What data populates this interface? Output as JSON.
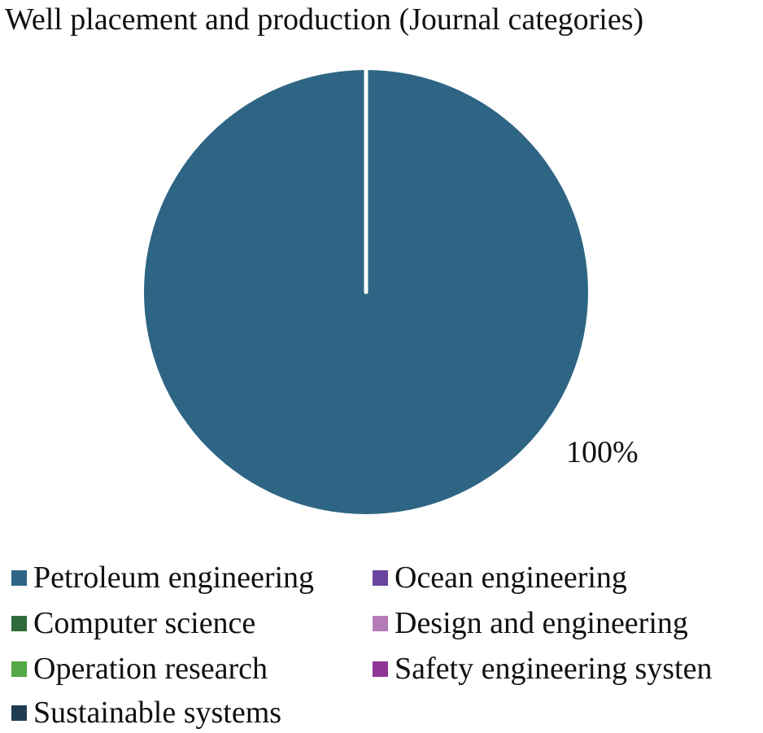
{
  "chart_data": {
    "type": "pie",
    "title": "Well placement and production (Journal categories)",
    "series": [
      {
        "name": "Petroleum engineering",
        "value": 100,
        "color": "#2e6584"
      },
      {
        "name": "Ocean engineering",
        "value": 0,
        "color": "#6a45a0"
      },
      {
        "name": "Computer science",
        "value": 0,
        "color": "#2f6b3c"
      },
      {
        "name": "Design and engineering",
        "value": 0,
        "color": "#b57bb9"
      },
      {
        "name": "Operation research",
        "value": 0,
        "color": "#55a845"
      },
      {
        "name": "Safety engineering systen",
        "value": 0,
        "color": "#8e3596"
      },
      {
        "name": "Sustainable systems",
        "value": 0,
        "color": "#1f3d52"
      }
    ],
    "data_labels": [
      "100%"
    ],
    "legend_position": "bottom"
  }
}
